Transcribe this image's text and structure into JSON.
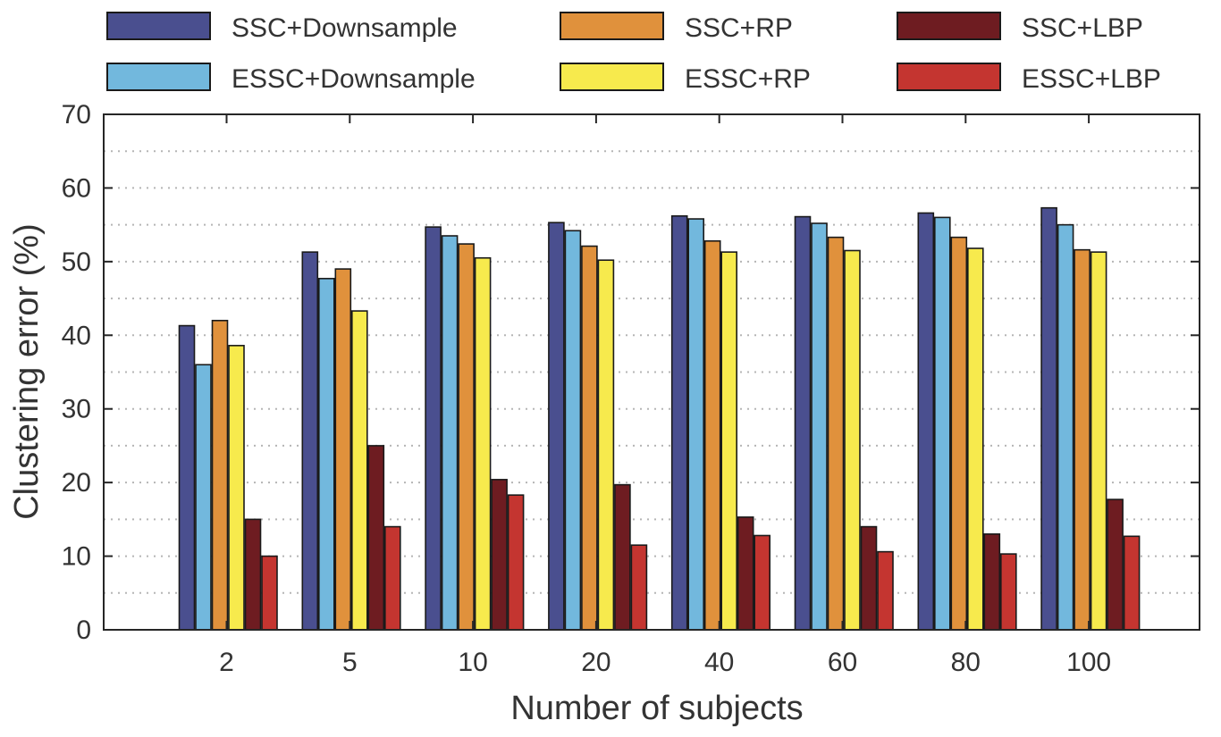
{
  "chart_data": {
    "type": "bar",
    "title": "",
    "xlabel": "Number of subjects",
    "ylabel": "Clustering error (%)",
    "categories": [
      "2",
      "5",
      "10",
      "20",
      "40",
      "60",
      "80",
      "100"
    ],
    "ylim": [
      0,
      70
    ],
    "yticks": [
      "0",
      "10",
      "20",
      "30",
      "40",
      "50",
      "60",
      "70"
    ],
    "grid": "horizontal dotted",
    "legend_position": "top",
    "series": [
      {
        "name": "SSC+Downsample",
        "color": "#4a4f8f",
        "values": [
          41.3,
          51.3,
          54.7,
          55.3,
          56.2,
          56.1,
          56.6,
          57.3
        ]
      },
      {
        "name": "ESSC+Downsample",
        "color": "#72b8dd",
        "values": [
          36.0,
          47.7,
          53.5,
          54.2,
          55.8,
          55.2,
          56.0,
          55.0
        ]
      },
      {
        "name": "SSC+RP",
        "color": "#e0913c",
        "values": [
          42.0,
          49.0,
          52.4,
          52.1,
          52.8,
          53.3,
          53.3,
          51.6
        ]
      },
      {
        "name": "ESSC+RP",
        "color": "#f7ea4d",
        "values": [
          38.6,
          43.3,
          50.5,
          50.2,
          51.3,
          51.5,
          51.8,
          51.3
        ]
      },
      {
        "name": "SSC+LBP",
        "color": "#6e1c21",
        "values": [
          15.0,
          25.0,
          20.4,
          19.7,
          15.3,
          14.0,
          13.0,
          17.7
        ]
      },
      {
        "name": "ESSC+LBP",
        "color": "#c43530",
        "values": [
          10.0,
          14.0,
          18.3,
          11.5,
          12.8,
          10.6,
          10.3,
          12.7
        ]
      }
    ]
  }
}
